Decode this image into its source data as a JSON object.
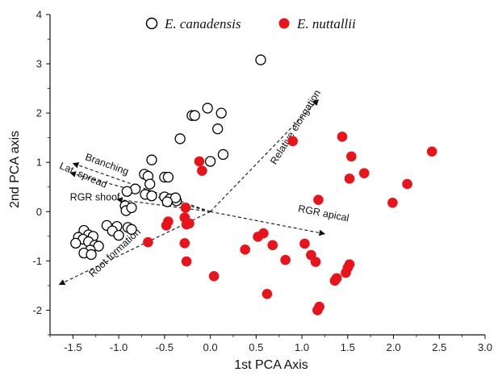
{
  "chart_data": {
    "type": "scatter",
    "xlabel": "1st PCA Axis",
    "ylabel": "2nd PCA axis",
    "xlim": [
      -1.75,
      3.0
    ],
    "ylim": [
      -2.5,
      4.0
    ],
    "x_ticks": [
      "-1.5",
      "-1.0",
      "-0.5",
      "0.0",
      "0.5",
      "1.0",
      "1.5",
      "2.0",
      "2.5",
      "3.0"
    ],
    "y_ticks": [
      "-2",
      "-1",
      "0",
      "1",
      "2",
      "3",
      "4"
    ],
    "legend_position": "top",
    "series": [
      {
        "name": "E. canadensis",
        "marker": "open-circle",
        "color": "#000000",
        "points": [
          [
            0.55,
            3.08
          ],
          [
            -0.03,
            2.1
          ],
          [
            0.12,
            2.0
          ],
          [
            -0.2,
            1.95
          ],
          [
            -0.17,
            1.95
          ],
          [
            -0.33,
            1.48
          ],
          [
            0.08,
            1.68
          ],
          [
            0.0,
            1.02
          ],
          [
            0.14,
            1.16
          ],
          [
            -0.64,
            1.05
          ],
          [
            -0.72,
            0.76
          ],
          [
            -0.68,
            0.72
          ],
          [
            -0.5,
            0.7
          ],
          [
            -0.46,
            0.7
          ],
          [
            -0.66,
            0.56
          ],
          [
            -0.82,
            0.46
          ],
          [
            -0.91,
            0.41
          ],
          [
            -0.71,
            0.35
          ],
          [
            -0.64,
            0.32
          ],
          [
            -0.5,
            0.3
          ],
          [
            -0.44,
            0.26
          ],
          [
            -0.37,
            0.22
          ],
          [
            -0.38,
            0.28
          ],
          [
            -0.47,
            0.2
          ],
          [
            -0.93,
            0.12
          ],
          [
            -0.92,
            0.02
          ],
          [
            -0.86,
            0.08
          ],
          [
            -1.13,
            -0.28
          ],
          [
            -1.02,
            -0.3
          ],
          [
            -0.9,
            -0.32
          ],
          [
            -0.86,
            -0.36
          ],
          [
            -1.07,
            -0.39
          ],
          [
            -1.0,
            -0.48
          ],
          [
            -1.38,
            -0.38
          ],
          [
            -1.33,
            -0.47
          ],
          [
            -1.28,
            -0.5
          ],
          [
            -1.44,
            -0.52
          ],
          [
            -1.39,
            -0.56
          ],
          [
            -1.47,
            -0.64
          ],
          [
            -1.33,
            -0.61
          ],
          [
            -1.26,
            -0.68
          ],
          [
            -1.22,
            -0.7
          ],
          [
            -1.31,
            -0.78
          ],
          [
            -1.38,
            -0.84
          ],
          [
            -1.3,
            -0.87
          ]
        ]
      },
      {
        "name": "E. nuttallii",
        "marker": "filled-circle",
        "color": "#e8141c",
        "points": [
          [
            -0.12,
            1.02
          ],
          [
            -0.09,
            0.83
          ],
          [
            0.9,
            1.43
          ],
          [
            1.44,
            1.52
          ],
          [
            1.54,
            1.12
          ],
          [
            1.68,
            0.78
          ],
          [
            1.52,
            0.67
          ],
          [
            2.42,
            1.22
          ],
          [
            2.15,
            0.56
          ],
          [
            1.99,
            0.18
          ],
          [
            1.18,
            0.24
          ],
          [
            -0.68,
            -0.62
          ],
          [
            -0.46,
            -0.2
          ],
          [
            -0.48,
            -0.28
          ],
          [
            -0.27,
            0.08
          ],
          [
            -0.28,
            -0.12
          ],
          [
            -0.23,
            -0.24
          ],
          [
            -0.26,
            -0.26
          ],
          [
            -0.28,
            -0.64
          ],
          [
            -0.26,
            -1.01
          ],
          [
            0.04,
            -1.31
          ],
          [
            0.38,
            -0.77
          ],
          [
            0.52,
            -0.51
          ],
          [
            0.58,
            -0.44
          ],
          [
            0.68,
            -0.68
          ],
          [
            0.82,
            -0.98
          ],
          [
            1.03,
            -0.65
          ],
          [
            1.1,
            -0.88
          ],
          [
            1.15,
            -1.02
          ],
          [
            0.62,
            -1.67
          ],
          [
            1.52,
            -1.07
          ],
          [
            1.5,
            -1.14
          ],
          [
            1.48,
            -1.24
          ],
          [
            1.38,
            -1.35
          ],
          [
            1.36,
            -1.4
          ],
          [
            1.19,
            -1.93
          ],
          [
            1.17,
            -2.0
          ]
        ]
      }
    ],
    "vectors": [
      {
        "label": "Relative elongation",
        "from": [
          0.0,
          0.0
        ],
        "to": [
          1.18,
          2.27
        ],
        "label_pos": [
          0.96,
          1.68
        ],
        "angle": -58
      },
      {
        "label": "RGR apical",
        "from": [
          0.0,
          0.0
        ],
        "to": [
          1.25,
          -0.45
        ],
        "label_pos": [
          1.23,
          -0.1
        ],
        "angle": 11
      },
      {
        "label": "Root formation",
        "from": [
          0.0,
          0.0
        ],
        "to": [
          -1.65,
          -1.48
        ],
        "label_pos": [
          -1.02,
          -0.88
        ],
        "angle": -43
      },
      {
        "label": "Branching",
        "from": [
          0.0,
          0.0
        ],
        "to": [
          -1.5,
          0.98
        ],
        "label_pos": [
          -1.14,
          0.9
        ],
        "angle": 20
      },
      {
        "label": "Lat. spread",
        "from": [
          0.0,
          0.0
        ],
        "to": [
          -1.53,
          0.79
        ],
        "label_pos": [
          -1.4,
          0.68
        ],
        "angle": 23
      },
      {
        "label": "RGR shoof",
        "from": [
          0.0,
          0.0
        ],
        "to": [
          -1.02,
          0.25
        ],
        "label_pos": [
          -1.26,
          0.23
        ],
        "angle": 0
      }
    ]
  }
}
